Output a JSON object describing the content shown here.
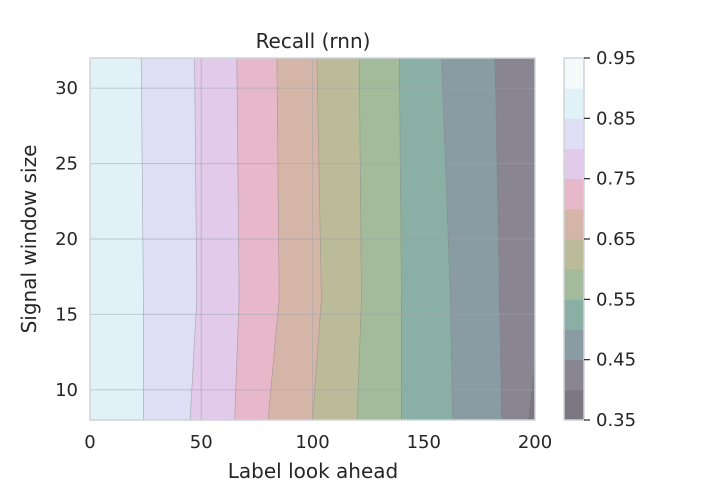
{
  "chart_data": {
    "type": "contourf",
    "title": "Recall (rnn)",
    "xlabel": "Label look ahead",
    "ylabel": "Signal window size",
    "xlim": [
      0,
      200
    ],
    "ylim": [
      8,
      32
    ],
    "xticks": [
      0,
      50,
      100,
      150,
      200
    ],
    "yticks": [
      10,
      15,
      20,
      25,
      30
    ],
    "grid": true,
    "levels": [
      0.35,
      0.4,
      0.45,
      0.5,
      0.55,
      0.6,
      0.65,
      0.7,
      0.75,
      0.8,
      0.85,
      0.9,
      0.95
    ],
    "colorbar_ticks": [
      "0.35",
      "0.45",
      "0.55",
      "0.65",
      "0.75",
      "0.85",
      "0.95"
    ],
    "colors": [
      "#7b7680",
      "#898591",
      "#8a9ca3",
      "#8ab0a6",
      "#a3bb9a",
      "#bcbb99",
      "#d6b5a9",
      "#e6b8c9",
      "#e2caea",
      "#dedff5",
      "#e0f2f7",
      "#f3faf9"
    ],
    "contour_lines": [
      {
        "level": 0.9,
        "points": [
          [
            24,
            8
          ],
          [
            24,
            16
          ],
          [
            23,
            32
          ]
        ]
      },
      {
        "level": 0.85,
        "points": [
          [
            45,
            8
          ],
          [
            48,
            16
          ],
          [
            47,
            32
          ]
        ]
      },
      {
        "level": 0.8,
        "points": [
          [
            65,
            8
          ],
          [
            67,
            16
          ],
          [
            66,
            32
          ]
        ]
      },
      {
        "level": 0.75,
        "points": [
          [
            80,
            8
          ],
          [
            85,
            16
          ],
          [
            84,
            32
          ]
        ]
      },
      {
        "level": 0.7,
        "points": [
          [
            100,
            8
          ],
          [
            104,
            16
          ],
          [
            102,
            32
          ]
        ]
      },
      {
        "level": 0.65,
        "points": [
          [
            120,
            8
          ],
          [
            122,
            16
          ],
          [
            121,
            32
          ]
        ]
      },
      {
        "level": 0.6,
        "points": [
          [
            140,
            8
          ],
          [
            140,
            16
          ],
          [
            139,
            32
          ]
        ]
      },
      {
        "level": 0.55,
        "points": [
          [
            163,
            8
          ],
          [
            162,
            16
          ],
          [
            158,
            32
          ]
        ]
      },
      {
        "level": 0.5,
        "points": [
          [
            185,
            8
          ],
          [
            184,
            16
          ],
          [
            182,
            32
          ]
        ]
      },
      {
        "level": 0.45,
        "points": [
          [
            197,
            8
          ],
          [
            200,
            12
          ]
        ]
      }
    ]
  }
}
